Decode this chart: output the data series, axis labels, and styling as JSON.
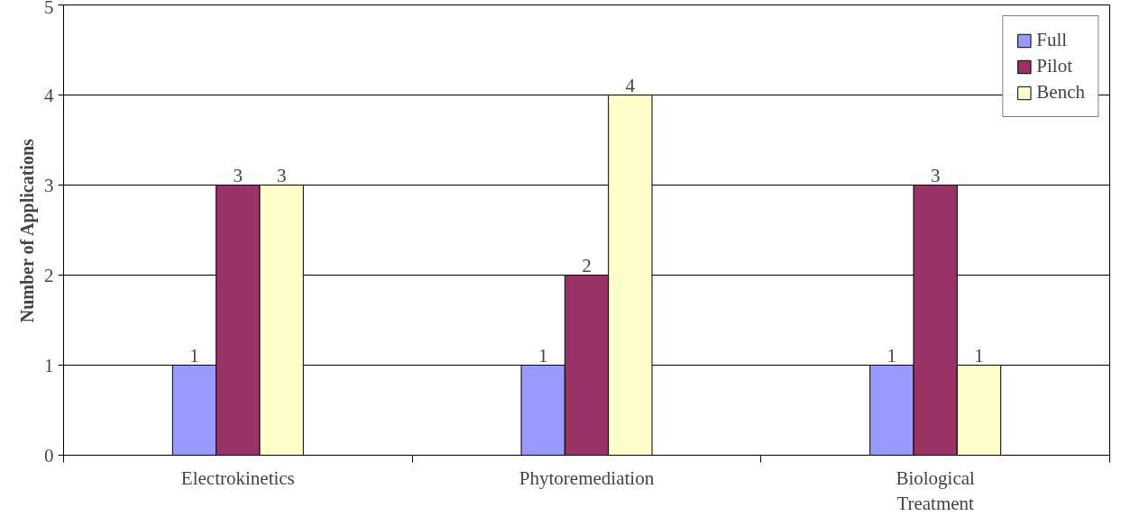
{
  "chart_data": {
    "type": "bar",
    "ylabel": "Number of Applications",
    "categories": [
      "Electrokinetics",
      "Phytoremediation",
      "Biological Treatment"
    ],
    "series": [
      {
        "name": "Full",
        "color": "#9999ff",
        "values": [
          1,
          1,
          1
        ]
      },
      {
        "name": "Pilot",
        "color": "#993366",
        "values": [
          3,
          2,
          3
        ]
      },
      {
        "name": "Bench",
        "color": "#ffffcc",
        "values": [
          3,
          4,
          1
        ]
      }
    ],
    "ylim": [
      0,
      5
    ],
    "yticks": [
      0,
      1,
      2,
      3,
      4,
      5
    ],
    "grid": "y",
    "legend": "top right",
    "data_labels": true
  }
}
